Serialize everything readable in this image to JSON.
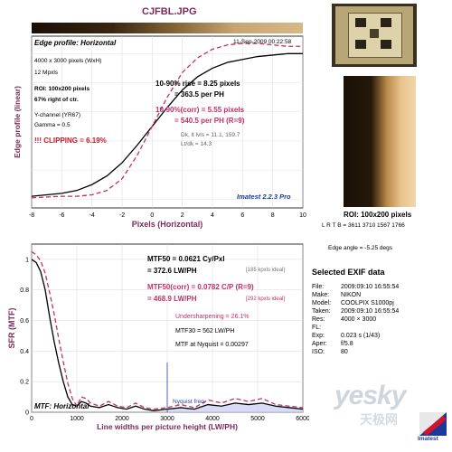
{
  "file_title": "CJFBL.JPG",
  "chart_data": [
    {
      "type": "line",
      "title": "Edge profile: Horizontal",
      "timestamp": "11-Sep-2009 00:22:58",
      "xlabel": "Pixels (Horizontal)",
      "ylabel": "Edge profile (linear)",
      "xlim": [
        -8,
        10
      ],
      "x_ticks": [
        "-8",
        "-6",
        "-4",
        "-2",
        "0",
        "2",
        "4",
        "6",
        "8",
        "10"
      ],
      "info_lines": [
        "4000 x 3000 pixels (WxH)",
        "12 Mpxls",
        "ROI: 100x200 pixels",
        "67% right of ctr.",
        "Y-channel (YR67)",
        "Gamma = 0.5"
      ],
      "clipping": "!!! CLIPPING = 6.19%",
      "rise": "10-90% rise = 8.25 pixels",
      "rise_ph": "= 363.5 per PH",
      "rise_corr": "10-90%(corr) = 5.55 pixels",
      "rise_corr_ph": "= 540.5 per PH (R=9)",
      "dk_lt": "Dk, lt lvls = 11.1, 159.7",
      "ltdk": "Lt/dk = 14.3",
      "brand": "Imatest 2.2.3 Pro",
      "series": [
        {
          "color": "#000000",
          "x": [
            -8,
            -6,
            -5,
            -4,
            -3,
            -2,
            -1,
            0,
            1,
            2,
            3,
            4,
            5,
            6,
            7,
            8,
            9,
            10
          ],
          "y": [
            0.02,
            0.04,
            0.06,
            0.1,
            0.16,
            0.25,
            0.37,
            0.5,
            0.63,
            0.75,
            0.84,
            0.9,
            0.94,
            0.96,
            0.98,
            0.99,
            1.0,
            1.0
          ]
        },
        {
          "color": "#c0306a",
          "x": [
            -8,
            -6,
            -5,
            -4,
            -3,
            -2,
            -1,
            0,
            1,
            2,
            3,
            4,
            5,
            6,
            7,
            8,
            9,
            10
          ],
          "y": [
            0.01,
            0.02,
            0.02,
            0.03,
            0.06,
            0.14,
            0.3,
            0.5,
            0.7,
            0.87,
            0.97,
            1.03,
            1.06,
            1.07,
            1.07,
            1.06,
            1.05,
            1.05
          ]
        }
      ]
    },
    {
      "type": "line",
      "title": "MTF: Horizontal",
      "xlabel": "Line widths per picture height (LW/PH)",
      "ylabel": "SFR (MTF)",
      "xlim": [
        0,
        6000
      ],
      "ylim": [
        0,
        1.1
      ],
      "x_ticks": [
        "0",
        "1000",
        "2000",
        "3000",
        "4000",
        "5000",
        "6000"
      ],
      "y_ticks": [
        "0",
        "0.2",
        "0.4",
        "0.6",
        "0.8",
        "1"
      ],
      "mtf50": "MTF50 = 0.0621 Cy/Pxl",
      "mtf50_lw": "= 372.6 LW/PH",
      "mtf50_ideal": "[185 kpxls ideal]",
      "mtf50_corr": "MTF50(corr) = 0.0782 C/P (R=9)",
      "mtf50_corr_lw": "= 468.9 LW/PH",
      "mtf50_corr_ideal": "[292 kpxls ideal]",
      "undersharpening": "Undersharpening = 26.1%",
      "mtf30": "MTF30 = 562 LW/PH",
      "mtf_nyquist": "MTF at Nyquist = 0.00297",
      "nyquist_label": "Nyquist freq.",
      "nyquist_x": 3000,
      "series": [
        {
          "color": "#000000",
          "x": [
            0,
            100,
            200,
            300,
            400,
            500,
            600,
            700,
            800,
            900,
            1000,
            1100,
            1200,
            1300,
            1500,
            1700,
            1900,
            2100,
            2300,
            2500,
            2700,
            3000,
            3300,
            3600,
            3900,
            4200,
            4500,
            4800,
            5100,
            5400,
            5700,
            6000
          ],
          "y": [
            1.0,
            0.98,
            0.92,
            0.8,
            0.62,
            0.46,
            0.32,
            0.2,
            0.1,
            0.05,
            0.04,
            0.07,
            0.06,
            0.04,
            0.03,
            0.05,
            0.03,
            0.02,
            0.04,
            0.02,
            0.01,
            0.02,
            0.03,
            0.02,
            0.05,
            0.04,
            0.06,
            0.05,
            0.06,
            0.04,
            0.03,
            0.02
          ]
        },
        {
          "color": "#c0306a",
          "x": [
            0,
            100,
            200,
            300,
            400,
            500,
            600,
            700,
            800,
            900,
            1000,
            1100,
            1200,
            1300,
            1500,
            1700,
            1900,
            2100,
            2300,
            2500,
            2700,
            3000,
            3300,
            3600,
            3900,
            4200,
            4500,
            4800,
            5100,
            5400,
            5700,
            6000
          ],
          "y": [
            1.05,
            1.03,
            0.99,
            0.91,
            0.78,
            0.64,
            0.48,
            0.33,
            0.19,
            0.09,
            0.04,
            0.1,
            0.09,
            0.06,
            0.04,
            0.07,
            0.04,
            0.03,
            0.06,
            0.03,
            0.02,
            0.03,
            0.05,
            0.03,
            0.08,
            0.06,
            0.09,
            0.07,
            0.09,
            0.05,
            0.04,
            0.03
          ]
        }
      ]
    }
  ],
  "roi": {
    "label": "ROI: 100x200 pixels",
    "coords": "L R T B = 3611 3710 1567 1766",
    "edge_angle": "Edge angle = -5.25 degs"
  },
  "exif": {
    "title": "Selected EXIF data",
    "rows": [
      {
        "k": "File:",
        "v": "2009:09:10 16:55:54"
      },
      {
        "k": "Make:",
        "v": "NIKON"
      },
      {
        "k": "Model:",
        "v": "COOLPIX S1000pj"
      },
      {
        "k": "Taken:",
        "v": "2009:09:10 16:55:54"
      },
      {
        "k": "Res:",
        "v": "4000 × 3000"
      },
      {
        "k": "FL:",
        "v": ""
      },
      {
        "k": "Exp:",
        "v": "0.023 s  (1/43)"
      },
      {
        "k": "Aper:",
        "v": "f/5.8"
      },
      {
        "k": "ISO:",
        "v": "80"
      }
    ]
  },
  "watermark": {
    "main": "yesky",
    "sub": "天极网",
    "logo": "Imatest"
  }
}
